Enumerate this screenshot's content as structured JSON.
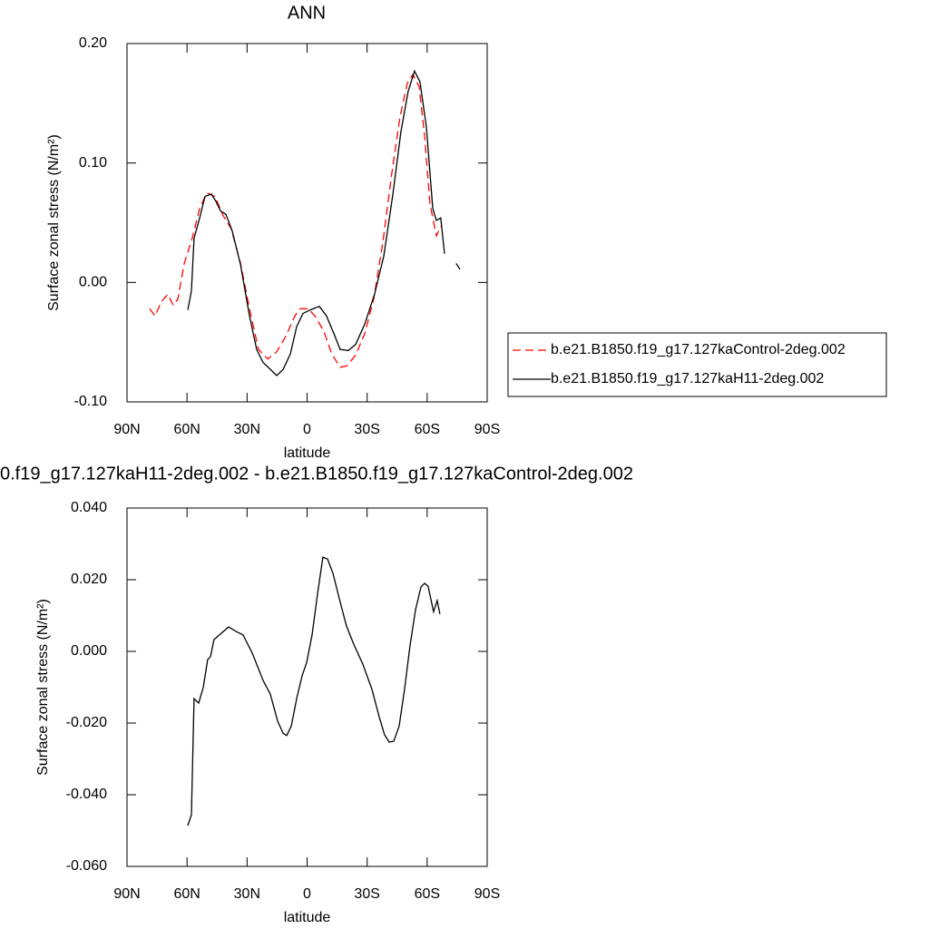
{
  "chart_data": [
    {
      "type": "line",
      "title": "ANN",
      "xlabel": "latitude",
      "ylabel": "Surface zonal stress (N/m²)",
      "xlim": [
        90,
        -90
      ],
      "xticks": [
        {
          "value": 90,
          "label": "90N"
        },
        {
          "value": 60,
          "label": "60N"
        },
        {
          "value": 30,
          "label": "30N"
        },
        0,
        {
          "value": -30,
          "label": "30S"
        },
        {
          "value": -60,
          "label": "60S"
        },
        {
          "value": -90,
          "label": "90S"
        }
      ],
      "ylim": [
        -0.1,
        0.2
      ],
      "yticks": [
        {
          "value": 0.2,
          "label": "0.20"
        },
        {
          "value": 0.1,
          "label": "0.10"
        },
        {
          "value": 0,
          "label": "0.00"
        },
        {
          "value": -0.1,
          "label": "-0.10"
        }
      ],
      "legend_position": "right",
      "series": [
        {
          "name": "b.e21.B1850.f19_g17.127kaControl-2deg.002",
          "color": "#ff0000",
          "line_style": "dashed",
          "x": [
            78.7,
            76,
            72.8,
            69.6,
            66.9,
            64.6,
            61.4,
            57.4,
            53.7,
            50.1,
            46,
            42,
            37.9,
            33.3,
            28.8,
            24.3,
            19.7,
            15.2,
            10.6,
            6.1,
            3.4,
            -0.7,
            -4.3,
            -8.4,
            -12.4,
            -16.5,
            -19.7,
            -24.2,
            -28.8,
            -33.3,
            -37.8,
            -42.4,
            -46.4,
            -50.1,
            -52.8,
            -56,
            -58.7,
            -61.4,
            -64.6,
            -66.8
          ],
          "values": [
            -0.022,
            -0.028,
            -0.016,
            -0.01,
            -0.019,
            -0.014,
            0.016,
            0.037,
            0.062,
            0.075,
            0.072,
            0.056,
            0.045,
            0.016,
            -0.022,
            -0.056,
            -0.064,
            -0.058,
            -0.045,
            -0.028,
            -0.022,
            -0.022,
            -0.029,
            -0.041,
            -0.06,
            -0.071,
            -0.07,
            -0.061,
            -0.043,
            -0.014,
            0.033,
            0.092,
            0.138,
            0.167,
            0.174,
            0.164,
            0.123,
            0.066,
            0.039,
            0.047
          ]
        },
        {
          "name": "b.e21.B1850.f19_g17.127kaH11-2deg.002",
          "color": "#000000",
          "line_style": "solid",
          "x": [
            59.6,
            57.8,
            56.5,
            53.7,
            51,
            47.8,
            45.6,
            43.3,
            40.6,
            37.4,
            33.3,
            28.8,
            25.2,
            22,
            18.8,
            15.2,
            12,
            8.4,
            5.2,
            2.1,
            -1.6,
            -6.1,
            -9.7,
            -13.4,
            -16.5,
            -20.6,
            -24.2,
            -28.8,
            -33.7,
            -38.3,
            -42.8,
            -46.9,
            -50.5,
            -53.7,
            -56.4,
            -59.6,
            -62.8,
            -64.6,
            -66.8,
            -68.7,
            null,
            -74.5,
            -76.4
          ],
          "values": [
            -0.023,
            -0.007,
            0.037,
            0.054,
            0.072,
            0.074,
            0.068,
            0.06,
            0.057,
            0.043,
            0.015,
            -0.028,
            -0.056,
            -0.067,
            -0.072,
            -0.078,
            -0.073,
            -0.06,
            -0.037,
            -0.026,
            -0.023,
            -0.02,
            -0.028,
            -0.043,
            -0.056,
            -0.057,
            -0.052,
            -0.035,
            -0.01,
            0.022,
            0.073,
            0.126,
            0.16,
            0.177,
            0.168,
            0.13,
            0.062,
            0.052,
            0.054,
            0.024,
            null,
            0.016,
            0.011
          ]
        }
      ]
    },
    {
      "type": "line",
      "title": "0.f19_g17.127kaH11-2deg.002 - b.e21.B1850.f19_g17.127kaControl-2deg.002",
      "xlabel": "latitude",
      "ylabel": "Surface zonal stress (N/m²)",
      "xlim": [
        90,
        -90
      ],
      "xticks": [
        {
          "value": 90,
          "label": "90N"
        },
        {
          "value": 60,
          "label": "60N"
        },
        {
          "value": 30,
          "label": "30N"
        },
        0,
        {
          "value": -30,
          "label": "30S"
        },
        {
          "value": -60,
          "label": "60S"
        },
        {
          "value": -90,
          "label": "90S"
        }
      ],
      "ylim": [
        -0.06,
        0.04
      ],
      "yticks": [
        {
          "value": 0.04,
          "label": "0.040"
        },
        {
          "value": 0.02,
          "label": "0.020"
        },
        {
          "value": 0,
          "label": "0.000"
        },
        {
          "value": -0.02,
          "label": "-0.020"
        },
        {
          "value": -0.04,
          "label": "-0.040"
        },
        {
          "value": -0.06,
          "label": "-0.060"
        }
      ],
      "series": [
        {
          "color": "#000000",
          "line_style": "solid",
          "x": [
            59.6,
            57.8,
            56.5,
            54.2,
            51.9,
            49.7,
            48.3,
            46.5,
            43.8,
            39.2,
            35.6,
            32,
            27.4,
            22,
            18.4,
            14.7,
            12,
            10.2,
            7.9,
            5.2,
            2.5,
            0.2,
            -2.5,
            -5.2,
            -7.9,
            -10.2,
            -12.9,
            -16.1,
            -19.7,
            -23.3,
            -27.8,
            -32.4,
            -36,
            -38.7,
            -41,
            -43.3,
            -46,
            -48.7,
            -51.4,
            -54.2,
            -56.9,
            -58.7,
            -60.5,
            -63.2,
            -65,
            -66.4
          ],
          "values": [
            -0.0486,
            -0.0456,
            -0.0132,
            -0.0144,
            -0.0101,
            -0.0023,
            -0.0015,
            0.0033,
            0.0046,
            0.0068,
            0.0056,
            0.0046,
            -0.0005,
            -0.0081,
            -0.0119,
            -0.0195,
            -0.0228,
            -0.0235,
            -0.0208,
            -0.0132,
            -0.0068,
            -0.003,
            0.0046,
            0.016,
            0.0263,
            0.0258,
            0.0218,
            0.0147,
            0.0071,
            0.002,
            -0.0035,
            -0.0106,
            -0.0182,
            -0.0233,
            -0.0253,
            -0.0251,
            -0.0208,
            -0.0106,
            0.0015,
            0.0116,
            0.018,
            0.019,
            0.0182,
            0.0111,
            0.0142,
            0.0104
          ]
        }
      ]
    }
  ]
}
